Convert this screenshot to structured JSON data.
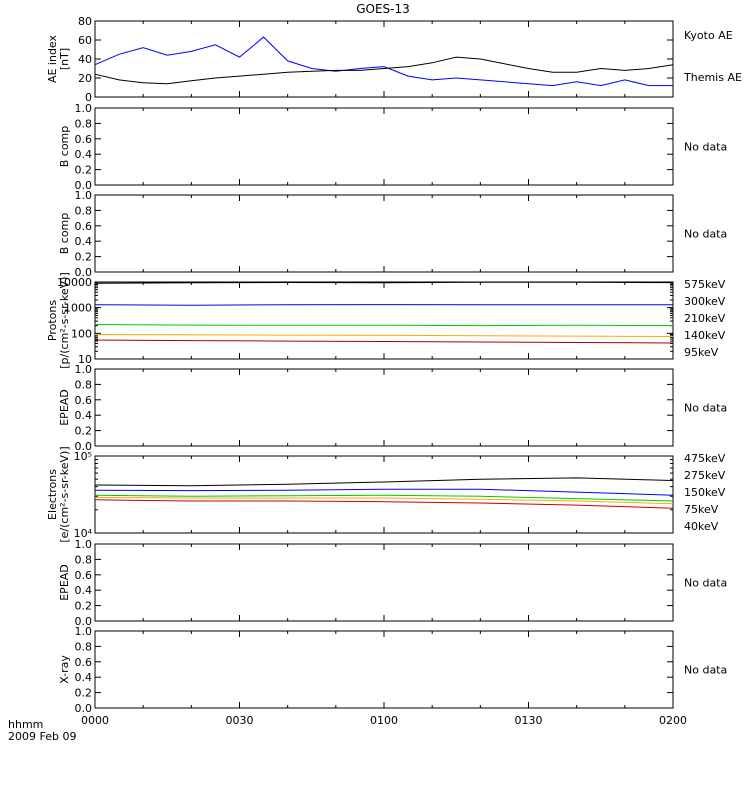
{
  "title": "GOES-13",
  "date_label": "2009 Feb 09",
  "time_axis_label": "hhmm",
  "x_ticks": [
    "0000",
    "0030",
    "0100",
    "0130",
    "0200"
  ],
  "no_data_label": "No data",
  "colors": {
    "black": "#000000",
    "blue": "#0000ff",
    "green": "#00cc00",
    "orange": "#ffaa00",
    "red": "#aa0000",
    "darkred": "#cc0000"
  },
  "chart_data": [
    {
      "type": "line",
      "panel": "ae",
      "ylabel_lines": [
        "AE index",
        "[nT]"
      ],
      "ylim": [
        0,
        80
      ],
      "y_ticks": [
        "0",
        "20",
        "40",
        "60",
        "80"
      ],
      "x_minutes": [
        0,
        5,
        10,
        15,
        20,
        25,
        30,
        35,
        40,
        45,
        50,
        55,
        60,
        65,
        70,
        75,
        80,
        85,
        90,
        95,
        100,
        105,
        110,
        115,
        120
      ],
      "series": [
        {
          "name": "Kyoto AE",
          "color": "#0000ff",
          "values": [
            34,
            45,
            52,
            44,
            48,
            55,
            42,
            63,
            38,
            30,
            27,
            30,
            32,
            22,
            18,
            20,
            18,
            16,
            14,
            12,
            16,
            12,
            18,
            12,
            12
          ]
        },
        {
          "name": "Themis AE",
          "color": "#000000",
          "values": [
            24,
            18,
            15,
            14,
            17,
            20,
            22,
            24,
            26,
            27,
            28,
            28,
            30,
            32,
            36,
            42,
            40,
            35,
            30,
            26,
            26,
            30,
            28,
            30,
            34
          ]
        }
      ]
    },
    {
      "type": "line",
      "panel": "bcomp1",
      "ylabel_lines": [
        "B comp"
      ],
      "ylim": [
        0,
        1
      ],
      "y_ticks": [
        "0.0",
        "0.2",
        "0.4",
        "0.6",
        "0.8",
        "1.0"
      ],
      "no_data": true,
      "series": []
    },
    {
      "type": "line",
      "panel": "bcomp2",
      "ylabel_lines": [
        "B comp"
      ],
      "ylim": [
        0,
        1
      ],
      "y_ticks": [
        "0.0",
        "0.2",
        "0.4",
        "0.6",
        "0.8",
        "1.0"
      ],
      "no_data": true,
      "series": []
    },
    {
      "type": "line",
      "panel": "protons",
      "scale": "log",
      "ylabel_lines": [
        "Protons",
        "[p/(cm²-s-sr-keV)]"
      ],
      "ylim": [
        10,
        10000
      ],
      "y_ticks": [
        "10",
        "100",
        "1000",
        "10000"
      ],
      "x_minutes": [
        0,
        20,
        40,
        60,
        80,
        100,
        120
      ],
      "series": [
        {
          "name": "575keV",
          "color": "#000000",
          "values": [
            9000,
            9300,
            9600,
            9400,
            9800,
            9700,
            9500
          ]
        },
        {
          "name": "300keV",
          "color": "#0000ff",
          "values": [
            1300,
            1250,
            1300,
            1320,
            1310,
            1300,
            1300
          ]
        },
        {
          "name": "210keV",
          "color": "#00cc00",
          "values": [
            220,
            210,
            205,
            208,
            200,
            205,
            200
          ]
        },
        {
          "name": "140keV",
          "color": "#ffaa00",
          "values": [
            90,
            88,
            85,
            84,
            80,
            78,
            75
          ]
        },
        {
          "name": "95keV",
          "color": "#aa0000",
          "values": [
            55,
            52,
            50,
            48,
            46,
            44,
            42
          ]
        }
      ]
    },
    {
      "type": "line",
      "panel": "epead1",
      "ylabel_lines": [
        "EPEAD"
      ],
      "ylim": [
        0,
        1
      ],
      "y_ticks": [
        "0.0",
        "0.2",
        "0.4",
        "0.6",
        "0.8",
        "1.0"
      ],
      "no_data": true,
      "series": []
    },
    {
      "type": "line",
      "panel": "electrons",
      "scale": "log",
      "ylabel_lines": [
        "Electrons",
        "[e/(cm²-s-sr-keV)]"
      ],
      "ylim": [
        10000,
        100000
      ],
      "y_ticks": [
        "10⁴",
        "10⁵"
      ],
      "x_minutes": [
        0,
        20,
        40,
        60,
        80,
        100,
        120
      ],
      "series": [
        {
          "name": "475keV",
          "color": "#000000",
          "values": [
            42000,
            41000,
            43000,
            46000,
            50000,
            52000,
            48000
          ]
        },
        {
          "name": "275keV",
          "color": "#0000ff",
          "values": [
            36000,
            35500,
            36000,
            37000,
            37000,
            34000,
            31000
          ]
        },
        {
          "name": "150keV",
          "color": "#00cc00",
          "values": [
            31000,
            30000,
            30500,
            31000,
            30000,
            28000,
            26000
          ]
        },
        {
          "name": "75keV",
          "color": "#ffaa00",
          "values": [
            29000,
            28500,
            28500,
            28500,
            27500,
            26000,
            24000
          ]
        },
        {
          "name": "40keV",
          "color": "#cc0000",
          "values": [
            27000,
            26000,
            26000,
            25500,
            24500,
            23000,
            21000
          ]
        }
      ]
    },
    {
      "type": "line",
      "panel": "epead2",
      "ylabel_lines": [
        "EPEAD"
      ],
      "ylim": [
        0,
        1
      ],
      "y_ticks": [
        "0.0",
        "0.2",
        "0.4",
        "0.6",
        "0.8",
        "1.0"
      ],
      "no_data": true,
      "series": []
    },
    {
      "type": "line",
      "panel": "xray",
      "ylabel_lines": [
        "X-ray"
      ],
      "ylim": [
        0,
        1
      ],
      "y_ticks": [
        "0.0",
        "0.2",
        "0.4",
        "0.6",
        "0.8",
        "1.0"
      ],
      "no_data": true,
      "series": []
    }
  ]
}
